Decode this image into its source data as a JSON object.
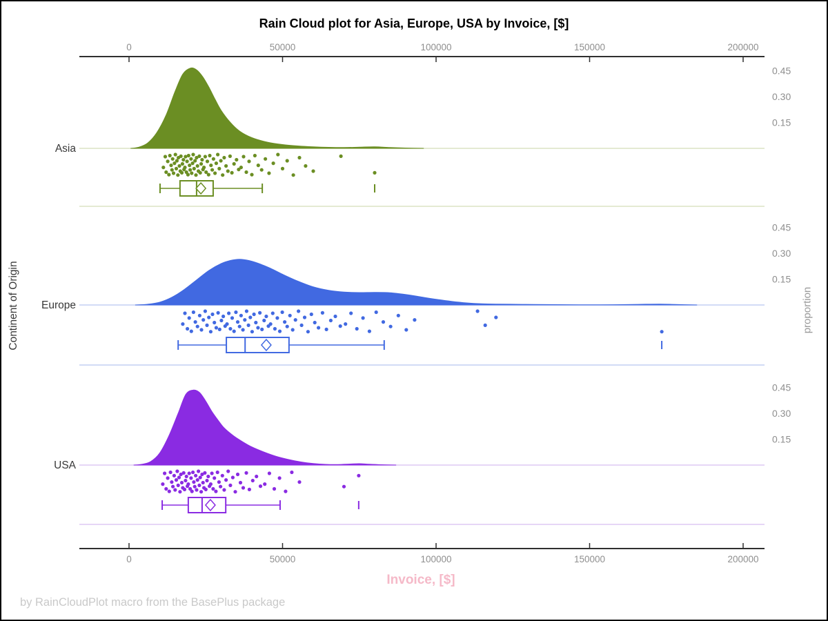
{
  "title": "Rain Cloud plot for Asia, Europe, USA by Invoice, [$]",
  "footer": "by RainCloudPlot macro from the BasePlus package",
  "axes": {
    "x_label": "Invoice, [$]",
    "y_left_label": "Continent of Origin",
    "y_right_label": "proportion",
    "x_tick_labels": [
      "0",
      "50000",
      "100000",
      "150000",
      "200000"
    ],
    "x_tick_values": [
      0,
      50000,
      100000,
      150000,
      200000
    ],
    "x_range": [
      0,
      200000
    ],
    "proportion_tick_labels": [
      "0.45",
      "0.30",
      "0.15"
    ],
    "proportion_tick_values": [
      0.45,
      0.3,
      0.15
    ]
  },
  "style": {
    "axis_color": "#2f2f2f",
    "tick_label_color": "#8e8e8e",
    "category_label_color": "#383838",
    "x_label_color": "#f5b9c8",
    "footer_color": "#c9c9c9",
    "background": "#ffffff",
    "border_color": "#000000"
  },
  "chart_data": {
    "type": "raincloud",
    "title": "Rain Cloud plot for Asia, Europe, USA by Invoice, [$]",
    "xlabel": "Invoice, [$]",
    "ylabel_left": "Continent of Origin",
    "ylabel_right": "proportion",
    "x_axis": {
      "min": 0,
      "max": 200000,
      "ticks": [
        0,
        50000,
        100000,
        150000,
        200000
      ]
    },
    "proportion_axis": {
      "ticks": [
        0.15,
        0.3,
        0.45
      ],
      "max": 0.5
    },
    "jitter_pattern": [
      0.62,
      0.1,
      0.85,
      0.33,
      0.97,
      0.05,
      0.52,
      0.74,
      0.21,
      0.9,
      0.42,
      0.0,
      0.68,
      0.3,
      0.99,
      0.15,
      0.55,
      0.8,
      0.08,
      0.88,
      0.45,
      0.25,
      0.72
    ],
    "series": [
      {
        "name": "Asia",
        "color": "#6B8E23",
        "light_color": "#dbe4c4",
        "density": {
          "x": [
            500,
            3000,
            6000,
            9000,
            12000,
            15000,
            17500,
            20000,
            22000,
            24000,
            26000,
            28000,
            30000,
            33000,
            36000,
            40000,
            45000,
            50000,
            55000,
            60000,
            65000,
            70000,
            75000,
            80000,
            85000,
            90000,
            96000
          ],
          "y": [
            0,
            0.006,
            0.03,
            0.09,
            0.19,
            0.33,
            0.43,
            0.465,
            0.455,
            0.415,
            0.355,
            0.285,
            0.22,
            0.15,
            0.1,
            0.062,
            0.036,
            0.022,
            0.014,
            0.009,
            0.006,
            0.005,
            0.007,
            0.009,
            0.005,
            0.002,
            0
          ]
        },
        "box": {
          "low": 10100,
          "q1": 16600,
          "median": 22000,
          "mean": 23400,
          "q3": 27400,
          "high": 43400,
          "outliers": [
            80000
          ]
        },
        "points": [
          11200,
          11800,
          12100,
          12600,
          13000,
          13300,
          13700,
          14000,
          14200,
          14500,
          14800,
          15100,
          15400,
          15600,
          15900,
          16100,
          16400,
          16700,
          16900,
          17200,
          17400,
          17700,
          17900,
          18200,
          18400,
          18700,
          18900,
          19200,
          19400,
          19700,
          19900,
          20200,
          20400,
          20700,
          20900,
          21200,
          21500,
          21800,
          22000,
          22300,
          22600,
          22900,
          23200,
          23500,
          23800,
          24100,
          24400,
          24800,
          25100,
          25500,
          25900,
          26300,
          26700,
          27100,
          27500,
          28000,
          28400,
          28900,
          29400,
          29900,
          30500,
          31000,
          31600,
          32200,
          32900,
          33500,
          34200,
          35000,
          35700,
          36500,
          37300,
          38200,
          39100,
          40000,
          41000,
          42100,
          43200,
          44400,
          45600,
          47000,
          48500,
          50000,
          51500,
          53500,
          55500,
          57500,
          60000,
          69000,
          80000
        ]
      },
      {
        "name": "Europe",
        "color": "#4169E1",
        "light_color": "#c3cff3",
        "density": {
          "x": [
            2000,
            6000,
            10000,
            14000,
            18000,
            22000,
            26000,
            30000,
            33000,
            36000,
            39000,
            42000,
            46000,
            50000,
            55000,
            60000,
            65000,
            70000,
            75000,
            80000,
            85000,
            90000,
            95000,
            100000,
            105000,
            110000,
            115000,
            120000,
            126000,
            132000,
            140000,
            150000,
            160000,
            167000,
            173000,
            178000,
            185000
          ],
          "y": [
            0,
            0.004,
            0.016,
            0.045,
            0.09,
            0.145,
            0.2,
            0.24,
            0.258,
            0.265,
            0.258,
            0.242,
            0.213,
            0.178,
            0.138,
            0.105,
            0.085,
            0.075,
            0.072,
            0.073,
            0.071,
            0.061,
            0.047,
            0.033,
            0.021,
            0.012,
            0.007,
            0.005,
            0.004,
            0.003,
            0.002,
            0.001,
            0.002,
            0.004,
            0.005,
            0.003,
            0
          ]
        },
        "box": {
          "low": 16000,
          "q1": 31700,
          "median": 37800,
          "mean": 44700,
          "q3": 52100,
          "high": 83100,
          "outliers": [
            173500
          ]
        },
        "points": [
          17500,
          18200,
          19000,
          19600,
          20300,
          21000,
          21600,
          22300,
          23000,
          23600,
          24200,
          24800,
          25400,
          26000,
          26600,
          27200,
          27800,
          28400,
          29000,
          29500,
          30100,
          30700,
          31300,
          31900,
          32500,
          33000,
          33600,
          34200,
          34800,
          35400,
          36000,
          36500,
          37100,
          37700,
          38300,
          38900,
          39500,
          40100,
          40700,
          41300,
          42000,
          42600,
          43300,
          44000,
          44700,
          45400,
          46100,
          46800,
          47500,
          48300,
          49100,
          49900,
          50700,
          51500,
          52400,
          53300,
          54200,
          55200,
          56200,
          57200,
          58300,
          59400,
          60500,
          61700,
          63000,
          64300,
          65700,
          67200,
          68800,
          70500,
          72300,
          74200,
          76200,
          78300,
          80500,
          82800,
          85200,
          87700,
          90300,
          93000,
          113500,
          116000,
          119500,
          173500
        ]
      },
      {
        "name": "USA",
        "color": "#8A2BE2",
        "light_color": "#dec9f3",
        "density": {
          "x": [
            1500,
            4000,
            7000,
            10000,
            13000,
            16000,
            18500,
            21000,
            23000,
            25000,
            27000,
            29000,
            31000,
            34000,
            37000,
            40000,
            44000,
            48000,
            52000,
            56000,
            60000,
            64000,
            68000,
            72000,
            75000,
            78000,
            82000,
            87000
          ],
          "y": [
            0,
            0.004,
            0.02,
            0.07,
            0.17,
            0.3,
            0.41,
            0.435,
            0.42,
            0.37,
            0.31,
            0.26,
            0.215,
            0.17,
            0.135,
            0.105,
            0.075,
            0.05,
            0.032,
            0.018,
            0.009,
            0.004,
            0.003,
            0.006,
            0.008,
            0.005,
            0.002,
            0
          ]
        },
        "box": {
          "low": 10800,
          "q1": 19300,
          "median": 23800,
          "mean": 26500,
          "q3": 31500,
          "high": 49200,
          "outliers": [
            74800
          ]
        },
        "points": [
          11000,
          11600,
          12100,
          12600,
          13100,
          13500,
          13900,
          14300,
          14700,
          15000,
          15400,
          15700,
          16000,
          16300,
          16600,
          16900,
          17200,
          17500,
          17800,
          18100,
          18400,
          18700,
          19000,
          19300,
          19600,
          19900,
          20200,
          20500,
          20800,
          21100,
          21400,
          21700,
          22000,
          22300,
          22600,
          22900,
          23200,
          23500,
          23800,
          24100,
          24400,
          24700,
          25000,
          25400,
          25800,
          26200,
          26600,
          27000,
          27400,
          27800,
          28300,
          28800,
          29300,
          29800,
          30400,
          31000,
          31600,
          32300,
          33000,
          33800,
          34600,
          35400,
          36300,
          37200,
          38200,
          39200,
          40300,
          41500,
          42800,
          44200,
          45700,
          47300,
          49000,
          51000,
          53000,
          55500,
          70000,
          74800
        ]
      }
    ]
  }
}
